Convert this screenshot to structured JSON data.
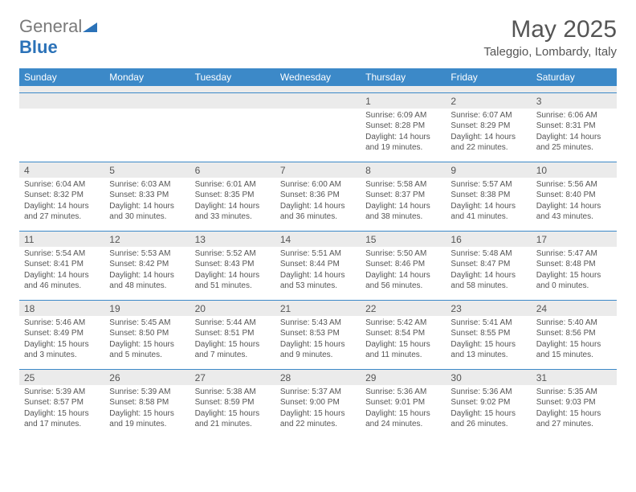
{
  "logo": {
    "text1": "General",
    "text2": "Blue"
  },
  "title": "May 2025",
  "location": "Taleggio, Lombardy, Italy",
  "colors": {
    "header_bg": "#3c89c8",
    "header_text": "#ffffff",
    "daynum_bg": "#ebebeb",
    "border_top": "#3c89c8",
    "body_text": "#555555",
    "logo_gray": "#7a7a7a",
    "logo_blue": "#2b72b8"
  },
  "dow": [
    "Sunday",
    "Monday",
    "Tuesday",
    "Wednesday",
    "Thursday",
    "Friday",
    "Saturday"
  ],
  "weeks": [
    [
      {
        "n": "",
        "l": [
          "",
          "",
          "",
          ""
        ]
      },
      {
        "n": "",
        "l": [
          "",
          "",
          "",
          ""
        ]
      },
      {
        "n": "",
        "l": [
          "",
          "",
          "",
          ""
        ]
      },
      {
        "n": "",
        "l": [
          "",
          "",
          "",
          ""
        ]
      },
      {
        "n": "1",
        "l": [
          "Sunrise: 6:09 AM",
          "Sunset: 8:28 PM",
          "Daylight: 14 hours",
          "and 19 minutes."
        ]
      },
      {
        "n": "2",
        "l": [
          "Sunrise: 6:07 AM",
          "Sunset: 8:29 PM",
          "Daylight: 14 hours",
          "and 22 minutes."
        ]
      },
      {
        "n": "3",
        "l": [
          "Sunrise: 6:06 AM",
          "Sunset: 8:31 PM",
          "Daylight: 14 hours",
          "and 25 minutes."
        ]
      }
    ],
    [
      {
        "n": "4",
        "l": [
          "Sunrise: 6:04 AM",
          "Sunset: 8:32 PM",
          "Daylight: 14 hours",
          "and 27 minutes."
        ]
      },
      {
        "n": "5",
        "l": [
          "Sunrise: 6:03 AM",
          "Sunset: 8:33 PM",
          "Daylight: 14 hours",
          "and 30 minutes."
        ]
      },
      {
        "n": "6",
        "l": [
          "Sunrise: 6:01 AM",
          "Sunset: 8:35 PM",
          "Daylight: 14 hours",
          "and 33 minutes."
        ]
      },
      {
        "n": "7",
        "l": [
          "Sunrise: 6:00 AM",
          "Sunset: 8:36 PM",
          "Daylight: 14 hours",
          "and 36 minutes."
        ]
      },
      {
        "n": "8",
        "l": [
          "Sunrise: 5:58 AM",
          "Sunset: 8:37 PM",
          "Daylight: 14 hours",
          "and 38 minutes."
        ]
      },
      {
        "n": "9",
        "l": [
          "Sunrise: 5:57 AM",
          "Sunset: 8:38 PM",
          "Daylight: 14 hours",
          "and 41 minutes."
        ]
      },
      {
        "n": "10",
        "l": [
          "Sunrise: 5:56 AM",
          "Sunset: 8:40 PM",
          "Daylight: 14 hours",
          "and 43 minutes."
        ]
      }
    ],
    [
      {
        "n": "11",
        "l": [
          "Sunrise: 5:54 AM",
          "Sunset: 8:41 PM",
          "Daylight: 14 hours",
          "and 46 minutes."
        ]
      },
      {
        "n": "12",
        "l": [
          "Sunrise: 5:53 AM",
          "Sunset: 8:42 PM",
          "Daylight: 14 hours",
          "and 48 minutes."
        ]
      },
      {
        "n": "13",
        "l": [
          "Sunrise: 5:52 AM",
          "Sunset: 8:43 PM",
          "Daylight: 14 hours",
          "and 51 minutes."
        ]
      },
      {
        "n": "14",
        "l": [
          "Sunrise: 5:51 AM",
          "Sunset: 8:44 PM",
          "Daylight: 14 hours",
          "and 53 minutes."
        ]
      },
      {
        "n": "15",
        "l": [
          "Sunrise: 5:50 AM",
          "Sunset: 8:46 PM",
          "Daylight: 14 hours",
          "and 56 minutes."
        ]
      },
      {
        "n": "16",
        "l": [
          "Sunrise: 5:48 AM",
          "Sunset: 8:47 PM",
          "Daylight: 14 hours",
          "and 58 minutes."
        ]
      },
      {
        "n": "17",
        "l": [
          "Sunrise: 5:47 AM",
          "Sunset: 8:48 PM",
          "Daylight: 15 hours",
          "and 0 minutes."
        ]
      }
    ],
    [
      {
        "n": "18",
        "l": [
          "Sunrise: 5:46 AM",
          "Sunset: 8:49 PM",
          "Daylight: 15 hours",
          "and 3 minutes."
        ]
      },
      {
        "n": "19",
        "l": [
          "Sunrise: 5:45 AM",
          "Sunset: 8:50 PM",
          "Daylight: 15 hours",
          "and 5 minutes."
        ]
      },
      {
        "n": "20",
        "l": [
          "Sunrise: 5:44 AM",
          "Sunset: 8:51 PM",
          "Daylight: 15 hours",
          "and 7 minutes."
        ]
      },
      {
        "n": "21",
        "l": [
          "Sunrise: 5:43 AM",
          "Sunset: 8:53 PM",
          "Daylight: 15 hours",
          "and 9 minutes."
        ]
      },
      {
        "n": "22",
        "l": [
          "Sunrise: 5:42 AM",
          "Sunset: 8:54 PM",
          "Daylight: 15 hours",
          "and 11 minutes."
        ]
      },
      {
        "n": "23",
        "l": [
          "Sunrise: 5:41 AM",
          "Sunset: 8:55 PM",
          "Daylight: 15 hours",
          "and 13 minutes."
        ]
      },
      {
        "n": "24",
        "l": [
          "Sunrise: 5:40 AM",
          "Sunset: 8:56 PM",
          "Daylight: 15 hours",
          "and 15 minutes."
        ]
      }
    ],
    [
      {
        "n": "25",
        "l": [
          "Sunrise: 5:39 AM",
          "Sunset: 8:57 PM",
          "Daylight: 15 hours",
          "and 17 minutes."
        ]
      },
      {
        "n": "26",
        "l": [
          "Sunrise: 5:39 AM",
          "Sunset: 8:58 PM",
          "Daylight: 15 hours",
          "and 19 minutes."
        ]
      },
      {
        "n": "27",
        "l": [
          "Sunrise: 5:38 AM",
          "Sunset: 8:59 PM",
          "Daylight: 15 hours",
          "and 21 minutes."
        ]
      },
      {
        "n": "28",
        "l": [
          "Sunrise: 5:37 AM",
          "Sunset: 9:00 PM",
          "Daylight: 15 hours",
          "and 22 minutes."
        ]
      },
      {
        "n": "29",
        "l": [
          "Sunrise: 5:36 AM",
          "Sunset: 9:01 PM",
          "Daylight: 15 hours",
          "and 24 minutes."
        ]
      },
      {
        "n": "30",
        "l": [
          "Sunrise: 5:36 AM",
          "Sunset: 9:02 PM",
          "Daylight: 15 hours",
          "and 26 minutes."
        ]
      },
      {
        "n": "31",
        "l": [
          "Sunrise: 5:35 AM",
          "Sunset: 9:03 PM",
          "Daylight: 15 hours",
          "and 27 minutes."
        ]
      }
    ]
  ]
}
